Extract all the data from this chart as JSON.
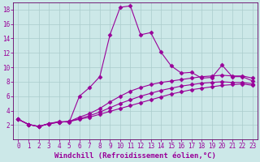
{
  "xlabel": "Windchill (Refroidissement éolien,°C)",
  "background_color": "#cce8e8",
  "grid_color": "#aacccc",
  "line_color": "#990099",
  "spine_color": "#660066",
  "xlim": [
    -0.5,
    23.5
  ],
  "ylim": [
    0,
    19
  ],
  "xticks": [
    0,
    1,
    2,
    3,
    4,
    5,
    6,
    7,
    8,
    9,
    10,
    11,
    12,
    13,
    14,
    15,
    16,
    17,
    18,
    19,
    20,
    21,
    22,
    23
  ],
  "yticks": [
    2,
    4,
    6,
    8,
    10,
    12,
    14,
    16,
    18
  ],
  "series": [
    [
      2.8,
      2.1,
      1.8,
      2.2,
      2.5,
      2.4,
      6.0,
      7.2,
      8.7,
      14.5,
      18.3,
      18.5,
      14.5,
      14.8,
      12.1,
      10.2,
      9.2,
      9.3,
      8.5,
      8.6,
      10.3,
      8.7,
      8.7,
      8.1
    ],
    [
      2.8,
      2.1,
      1.8,
      2.2,
      2.4,
      2.5,
      3.1,
      3.6,
      4.3,
      5.2,
      6.0,
      6.7,
      7.2,
      7.6,
      7.9,
      8.1,
      8.3,
      8.5,
      8.7,
      8.8,
      8.9,
      8.8,
      8.8,
      8.5
    ],
    [
      2.8,
      2.1,
      1.8,
      2.2,
      2.4,
      2.5,
      2.9,
      3.3,
      3.8,
      4.4,
      5.0,
      5.5,
      6.0,
      6.4,
      6.8,
      7.1,
      7.4,
      7.6,
      7.8,
      7.9,
      8.0,
      7.9,
      7.9,
      7.7
    ],
    [
      2.8,
      2.1,
      1.8,
      2.2,
      2.4,
      2.5,
      2.8,
      3.1,
      3.5,
      3.9,
      4.3,
      4.7,
      5.1,
      5.5,
      5.9,
      6.3,
      6.6,
      6.9,
      7.1,
      7.3,
      7.5,
      7.6,
      7.7,
      7.5
    ]
  ],
  "marker": "D",
  "markersize": 2.5,
  "linewidth": 0.8,
  "xlabel_fontsize": 6.5,
  "tick_fontsize": 5.5,
  "tick_color": "#990099"
}
